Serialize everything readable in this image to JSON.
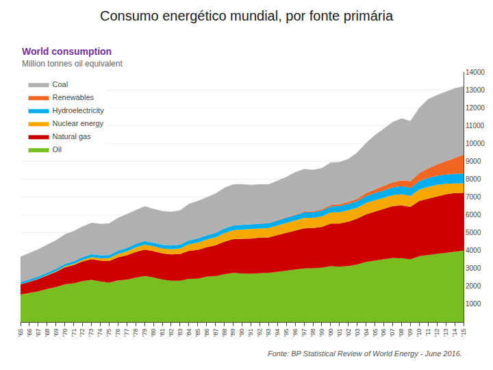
{
  "chart_data": {
    "type": "area",
    "stacked": true,
    "title": "Consumo energético mundial, por fonte primária",
    "subtitle": "World consumption",
    "annotations": [
      "Million tonnes oil equivalent",
      "Fonte: BP Statistical Review of World Energy - June 2016."
    ],
    "x": [
      1965,
      1966,
      1967,
      1968,
      1969,
      1970,
      1971,
      1972,
      1973,
      1974,
      1975,
      1976,
      1977,
      1978,
      1979,
      1980,
      1981,
      1982,
      1983,
      1984,
      1985,
      1986,
      1987,
      1988,
      1989,
      1990,
      1991,
      1992,
      1993,
      1994,
      1995,
      1996,
      1997,
      1998,
      1999,
      2000,
      2001,
      2002,
      2003,
      2004,
      2005,
      2006,
      2007,
      2008,
      2009,
      2010,
      2011,
      2012,
      2013,
      2014,
      2015
    ],
    "series": [
      {
        "name": "Oil",
        "color": "#78be20",
        "values": [
          1530,
          1620,
          1720,
          1850,
          1960,
          2110,
          2170,
          2290,
          2360,
          2270,
          2210,
          2330,
          2370,
          2480,
          2580,
          2490,
          2380,
          2310,
          2310,
          2420,
          2430,
          2540,
          2570,
          2680,
          2750,
          2710,
          2700,
          2730,
          2750,
          2810,
          2870,
          2930,
          3000,
          3010,
          3040,
          3130,
          3100,
          3140,
          3220,
          3370,
          3450,
          3520,
          3590,
          3570,
          3510,
          3680,
          3760,
          3820,
          3870,
          3940,
          4000
        ]
      },
      {
        "name": "Natural gas",
        "color": "#cc0000",
        "values": [
          580,
          630,
          690,
          760,
          850,
          950,
          1020,
          1100,
          1160,
          1170,
          1200,
          1290,
          1370,
          1440,
          1480,
          1480,
          1470,
          1480,
          1500,
          1570,
          1610,
          1650,
          1730,
          1820,
          1890,
          1950,
          1970,
          2000,
          1990,
          2060,
          2120,
          2190,
          2250,
          2250,
          2280,
          2380,
          2410,
          2480,
          2570,
          2660,
          2740,
          2810,
          2900,
          2960,
          2930,
          3100,
          3150,
          3220,
          3280,
          3280,
          3230
        ]
      },
      {
        "name": "Nuclear energy",
        "color": "#f5a800",
        "values": [
          10,
          15,
          20,
          28,
          40,
          55,
          70,
          90,
          110,
          130,
          165,
          195,
          225,
          260,
          270,
          270,
          265,
          285,
          310,
          360,
          405,
          430,
          450,
          490,
          500,
          520,
          535,
          520,
          525,
          540,
          560,
          585,
          580,
          570,
          600,
          625,
          640,
          640,
          615,
          640,
          630,
          640,
          620,
          625,
          615,
          640,
          660,
          640,
          585,
          540,
          540
        ]
      },
      {
        "name": "Hydroelectricity",
        "color": "#00aeef",
        "values": [
          110,
          115,
          120,
          125,
          130,
          140,
          145,
          155,
          165,
          165,
          170,
          185,
          190,
          195,
          205,
          200,
          205,
          210,
          210,
          225,
          230,
          235,
          240,
          250,
          255,
          260,
          265,
          265,
          270,
          280,
          285,
          300,
          305,
          310,
          325,
          330,
          345,
          355,
          365,
          385,
          395,
          415,
          425,
          445,
          450,
          470,
          490,
          505,
          520,
          535,
          545
        ]
      },
      {
        "name": "Renewables",
        "color": "#f26522",
        "values": [
          0,
          0,
          0,
          0,
          0,
          0,
          0,
          0,
          0,
          0,
          0,
          0,
          0,
          0,
          0,
          0,
          0,
          0,
          0,
          0,
          0,
          0,
          0,
          0,
          0,
          0,
          5,
          10,
          15,
          20,
          25,
          35,
          45,
          55,
          65,
          80,
          95,
          115,
          135,
          165,
          200,
          240,
          285,
          330,
          380,
          450,
          540,
          640,
          760,
          900,
          1050
        ]
      },
      {
        "name": "Coal",
        "color": "#b0b0b0",
        "values": [
          1430,
          1490,
          1530,
          1570,
          1600,
          1650,
          1690,
          1720,
          1770,
          1760,
          1780,
          1830,
          1890,
          1900,
          1950,
          1900,
          1890,
          1890,
          1920,
          2040,
          2100,
          2130,
          2200,
          2280,
          2310,
          2280,
          2210,
          2180,
          2160,
          2200,
          2260,
          2350,
          2380,
          2330,
          2310,
          2380,
          2370,
          2400,
          2590,
          2810,
          3060,
          3200,
          3380,
          3470,
          3370,
          3650,
          3880,
          3880,
          3870,
          3890,
          3840
        ]
      }
    ],
    "xlim": [
      1965,
      2015
    ],
    "xticks": [
      {
        "value": 1965,
        "label": "'65"
      },
      {
        "value": 1966,
        "label": "'66"
      },
      {
        "value": 1967,
        "label": "'67"
      },
      {
        "value": 1968,
        "label": "'68"
      },
      {
        "value": 1969,
        "label": "'69"
      },
      {
        "value": 1970,
        "label": "'70"
      },
      {
        "value": 1971,
        "label": "'71"
      },
      {
        "value": 1972,
        "label": "'72"
      },
      {
        "value": 1973,
        "label": "'73"
      },
      {
        "value": 1974,
        "label": "'74"
      },
      {
        "value": 1975,
        "label": "'75"
      },
      {
        "value": 1976,
        "label": "'76"
      },
      {
        "value": 1977,
        "label": "'77"
      },
      {
        "value": 1978,
        "label": "'78"
      },
      {
        "value": 1979,
        "label": "'79"
      },
      {
        "value": 1980,
        "label": "'80"
      },
      {
        "value": 1981,
        "label": "'81"
      },
      {
        "value": 1982,
        "label": "'82"
      },
      {
        "value": 1983,
        "label": "'83"
      },
      {
        "value": 1984,
        "label": "'84"
      },
      {
        "value": 1985,
        "label": "'85"
      },
      {
        "value": 1986,
        "label": "'86"
      },
      {
        "value": 1987,
        "label": "'87"
      },
      {
        "value": 1988,
        "label": "'88"
      },
      {
        "value": 1989,
        "label": "'89"
      },
      {
        "value": 1990,
        "label": "'90"
      },
      {
        "value": 1991,
        "label": "'91"
      },
      {
        "value": 1992,
        "label": "'92"
      },
      {
        "value": 1993,
        "label": "'93"
      },
      {
        "value": 1994,
        "label": "'94"
      },
      {
        "value": 1995,
        "label": "'95"
      },
      {
        "value": 1996,
        "label": "'96"
      },
      {
        "value": 1997,
        "label": "'97"
      },
      {
        "value": 1998,
        "label": "'98"
      },
      {
        "value": 1999,
        "label": "'99"
      },
      {
        "value": 2000,
        "label": "'00"
      },
      {
        "value": 2001,
        "label": "'01"
      },
      {
        "value": 2002,
        "label": "'02"
      },
      {
        "value": 2003,
        "label": "'03"
      },
      {
        "value": 2004,
        "label": "'04"
      },
      {
        "value": 2005,
        "label": "'05"
      },
      {
        "value": 2006,
        "label": "'06"
      },
      {
        "value": 2007,
        "label": "'07"
      },
      {
        "value": 2008,
        "label": "'08"
      },
      {
        "value": 2009,
        "label": "'09"
      },
      {
        "value": 2010,
        "label": "'10"
      },
      {
        "value": 2011,
        "label": "'11"
      },
      {
        "value": 2012,
        "label": "'12"
      },
      {
        "value": 2013,
        "label": "'13"
      },
      {
        "value": 2014,
        "label": "'14"
      },
      {
        "value": 2015,
        "label": "'15"
      }
    ],
    "ylim": [
      0,
      14000
    ],
    "yticks": [
      1000,
      2000,
      3000,
      4000,
      5000,
      6000,
      7000,
      8000,
      9000,
      10000,
      11000,
      12000,
      13000,
      14000
    ],
    "grid": true,
    "legend": "upper left"
  }
}
